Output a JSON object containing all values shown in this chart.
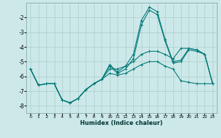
{
  "xlabel": "Humidex (Indice chaleur)",
  "bg_color": "#cce8e8",
  "grid_color": "#aacccc",
  "line_color": "#007777",
  "xlim": [
    -0.5,
    23.5
  ],
  "ylim": [
    -8.5,
    -1.0
  ],
  "yticks": [
    -8,
    -7,
    -6,
    -5,
    -4,
    -3,
    -2
  ],
  "xticks": [
    0,
    1,
    2,
    3,
    4,
    5,
    6,
    7,
    8,
    9,
    10,
    11,
    12,
    13,
    14,
    15,
    16,
    17,
    18,
    19,
    20,
    21,
    22,
    23
  ],
  "lines": [
    {
      "x": [
        0,
        1,
        2,
        3,
        4,
        5,
        6,
        7,
        8,
        9,
        10,
        11,
        12,
        13,
        14,
        15,
        16,
        17,
        18,
        19,
        20,
        21,
        22,
        23
      ],
      "y": [
        -5.5,
        -6.6,
        -6.5,
        -6.5,
        -7.6,
        -7.8,
        -7.5,
        -6.9,
        -6.5,
        -6.2,
        -5.2,
        -5.7,
        -5.3,
        -4.5,
        -2.2,
        -1.3,
        -1.6,
        -3.5,
        -5.0,
        -4.9,
        -4.1,
        -4.2,
        -4.5,
        -6.5
      ]
    },
    {
      "x": [
        0,
        1,
        2,
        3,
        4,
        5,
        6,
        7,
        8,
        9,
        10,
        11,
        12,
        13,
        14,
        15,
        16,
        17,
        18,
        19,
        20,
        21,
        22,
        23
      ],
      "y": [
        -5.5,
        -6.6,
        -6.5,
        -6.5,
        -7.6,
        -7.8,
        -7.5,
        -6.9,
        -6.5,
        -6.2,
        -5.3,
        -5.8,
        -5.5,
        -4.8,
        -2.5,
        -1.5,
        -1.8,
        -3.6,
        -5.1,
        -5.0,
        -4.2,
        -4.3,
        -4.5,
        -6.5
      ]
    },
    {
      "x": [
        0,
        1,
        2,
        3,
        4,
        5,
        6,
        7,
        8,
        9,
        10,
        11,
        12,
        13,
        14,
        15,
        16,
        17,
        18,
        19,
        20,
        21,
        22,
        23
      ],
      "y": [
        -5.5,
        -6.6,
        -6.5,
        -6.5,
        -7.6,
        -7.8,
        -7.5,
        -6.9,
        -6.5,
        -6.2,
        -5.5,
        -5.5,
        -5.3,
        -5.0,
        -4.5,
        -4.3,
        -4.3,
        -4.5,
        -4.8,
        -4.1,
        -4.1,
        -4.2,
        -4.5,
        -6.5
      ]
    },
    {
      "x": [
        0,
        1,
        2,
        3,
        4,
        5,
        6,
        7,
        8,
        9,
        10,
        11,
        12,
        13,
        14,
        15,
        16,
        17,
        18,
        19,
        20,
        21,
        22,
        23
      ],
      "y": [
        -5.5,
        -6.6,
        -6.5,
        -6.5,
        -7.6,
        -7.8,
        -7.5,
        -6.9,
        -6.5,
        -6.2,
        -5.8,
        -5.9,
        -5.8,
        -5.5,
        -5.2,
        -5.0,
        -5.0,
        -5.3,
        -5.5,
        -6.3,
        -6.4,
        -6.5,
        -6.5,
        -6.5
      ]
    }
  ]
}
